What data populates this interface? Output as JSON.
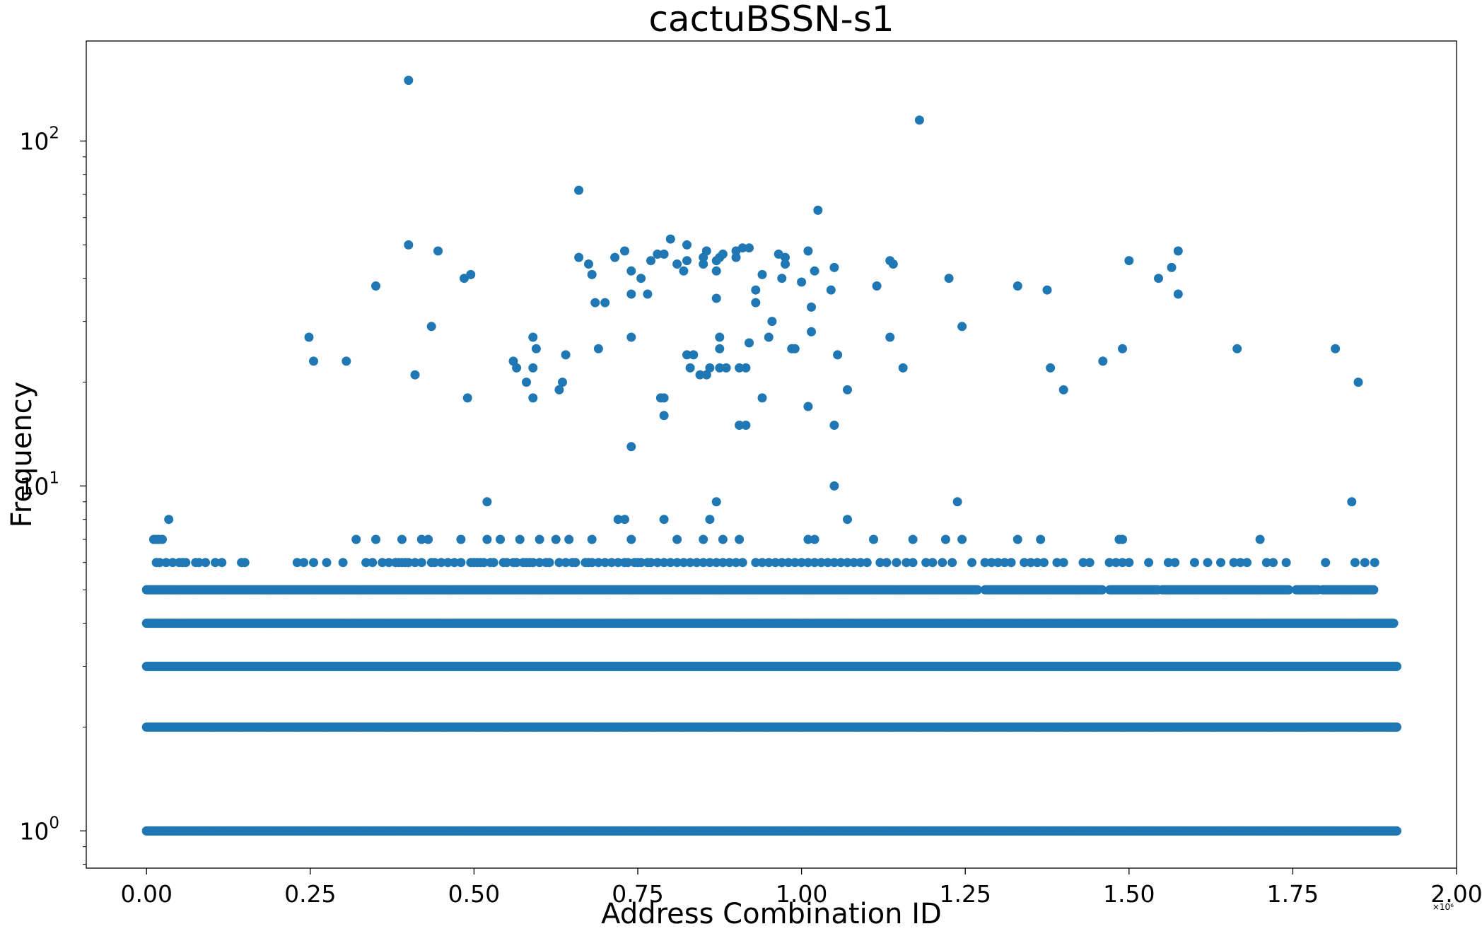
{
  "chart_data": {
    "type": "scatter",
    "title": "cactuBSSN-s1",
    "xlabel": "Address Combination ID",
    "ylabel": "Frequency",
    "x_offset_label": "×10⁶",
    "x_scale_factor": 1000000,
    "y_scale": "log",
    "xlim": [
      -0.092,
      2.0
    ],
    "ylim": [
      0.78,
      195
    ],
    "x_ticks": [
      0.0,
      0.25,
      0.5,
      0.75,
      1.0,
      1.25,
      1.5,
      1.75,
      2.0
    ],
    "x_tick_labels": [
      "0.00",
      "0.25",
      "0.50",
      "0.75",
      "1.00",
      "1.25",
      "1.50",
      "1.75",
      "2.00"
    ],
    "y_ticks": [
      1,
      10,
      100
    ],
    "y_tick_labels": [
      "10",
      "10",
      "10"
    ],
    "y_tick_exponents": [
      "0",
      "1",
      "2"
    ],
    "grid": false,
    "marker_color": "#1f77b4",
    "dense_rows": [
      {
        "y": 1,
        "x_range": [
          0.0,
          1.91
        ]
      },
      {
        "y": 2,
        "x_range": [
          0.0,
          1.91
        ]
      },
      {
        "y": 3,
        "x_range": [
          0.0,
          1.91
        ]
      },
      {
        "y": 4,
        "x_range": [
          0.0,
          1.905
        ]
      },
      {
        "y": 5,
        "x_range": [
          0.0,
          1.875
        ]
      }
    ],
    "row_gaps": [
      {
        "y": 5,
        "x_range": [
          1.27,
          1.28
        ]
      },
      {
        "y": 5,
        "x_range": [
          1.46,
          1.47
        ]
      },
      {
        "y": 5,
        "x_range": [
          1.545,
          1.55
        ]
      },
      {
        "y": 5,
        "x_range": [
          1.745,
          1.755
        ]
      },
      {
        "y": 5,
        "x_range": [
          1.79,
          1.795
        ]
      }
    ],
    "points": [
      [
        0.011,
        7
      ],
      [
        0.015,
        7
      ],
      [
        0.019,
        7
      ],
      [
        0.024,
        7
      ],
      [
        0.034,
        8
      ],
      [
        0.52,
        9
      ],
      [
        0.87,
        9
      ],
      [
        1.238,
        9
      ],
      [
        1.84,
        9
      ],
      [
        1.05,
        10
      ],
      [
        0.72,
        8
      ],
      [
        0.73,
        8
      ],
      [
        0.79,
        8
      ],
      [
        0.86,
        8
      ],
      [
        1.07,
        8
      ],
      [
        0.32,
        7
      ],
      [
        0.35,
        7
      ],
      [
        0.39,
        7
      ],
      [
        0.42,
        7
      ],
      [
        0.43,
        7
      ],
      [
        0.48,
        7
      ],
      [
        0.52,
        7
      ],
      [
        0.54,
        7
      ],
      [
        0.57,
        7
      ],
      [
        0.6,
        7
      ],
      [
        0.625,
        7
      ],
      [
        0.645,
        7
      ],
      [
        0.68,
        7
      ],
      [
        0.74,
        7
      ],
      [
        0.81,
        7
      ],
      [
        0.85,
        7
      ],
      [
        0.88,
        7
      ],
      [
        0.905,
        7
      ],
      [
        1.01,
        7
      ],
      [
        1.02,
        7
      ],
      [
        1.11,
        7
      ],
      [
        1.17,
        7
      ],
      [
        1.22,
        7
      ],
      [
        1.245,
        7
      ],
      [
        1.33,
        7
      ],
      [
        1.365,
        7
      ],
      [
        1.485,
        7
      ],
      [
        1.49,
        7
      ],
      [
        1.7,
        7
      ],
      [
        0.74,
        13
      ],
      [
        0.79,
        16
      ],
      [
        0.785,
        18
      ],
      [
        0.79,
        18
      ],
      [
        0.94,
        18
      ],
      [
        0.905,
        15
      ],
      [
        0.915,
        15
      ],
      [
        1.05,
        15
      ],
      [
        1.01,
        17
      ],
      [
        0.59,
        18
      ],
      [
        0.49,
        18
      ],
      [
        1.07,
        19
      ],
      [
        1.4,
        19
      ],
      [
        1.85,
        20
      ],
      [
        0.58,
        20
      ],
      [
        0.635,
        20
      ],
      [
        0.63,
        19
      ],
      [
        0.41,
        21
      ],
      [
        0.845,
        21
      ],
      [
        0.855,
        21
      ],
      [
        0.86,
        22
      ],
      [
        0.875,
        22
      ],
      [
        0.885,
        22
      ],
      [
        0.905,
        22
      ],
      [
        0.915,
        22
      ],
      [
        0.83,
        22
      ],
      [
        0.565,
        22
      ],
      [
        0.59,
        22
      ],
      [
        1.155,
        22
      ],
      [
        1.38,
        22
      ],
      [
        0.255,
        23
      ],
      [
        0.305,
        23
      ],
      [
        0.56,
        23
      ],
      [
        1.46,
        23
      ],
      [
        0.64,
        24
      ],
      [
        0.825,
        24
      ],
      [
        0.835,
        24
      ],
      [
        1.055,
        24
      ],
      [
        0.595,
        25
      ],
      [
        0.69,
        25
      ],
      [
        0.875,
        25
      ],
      [
        0.985,
        25
      ],
      [
        0.99,
        25
      ],
      [
        1.49,
        25
      ],
      [
        1.665,
        25
      ],
      [
        1.815,
        25
      ],
      [
        0.92,
        26
      ],
      [
        0.248,
        27
      ],
      [
        0.59,
        27
      ],
      [
        0.74,
        27
      ],
      [
        0.875,
        27
      ],
      [
        0.95,
        27
      ],
      [
        1.135,
        27
      ],
      [
        0.435,
        29
      ],
      [
        1.245,
        29
      ],
      [
        1.015,
        28
      ],
      [
        0.955,
        30
      ],
      [
        0.685,
        34
      ],
      [
        0.7,
        34
      ],
      [
        0.93,
        34
      ],
      [
        0.87,
        35
      ],
      [
        1.015,
        33
      ],
      [
        0.74,
        36
      ],
      [
        0.765,
        36
      ],
      [
        0.93,
        37
      ],
      [
        1.045,
        37
      ],
      [
        1.375,
        37
      ],
      [
        1.575,
        36
      ],
      [
        0.35,
        38
      ],
      [
        1.115,
        38
      ],
      [
        1.33,
        38
      ],
      [
        0.755,
        40
      ],
      [
        0.485,
        40
      ],
      [
        0.495,
        41
      ],
      [
        0.68,
        41
      ],
      [
        0.94,
        41
      ],
      [
        0.97,
        40
      ],
      [
        1.225,
        40
      ],
      [
        1.545,
        40
      ],
      [
        1.0,
        39
      ],
      [
        0.74,
        42
      ],
      [
        0.82,
        42
      ],
      [
        0.87,
        42
      ],
      [
        1.02,
        42
      ],
      [
        1.05,
        43
      ],
      [
        1.565,
        43
      ],
      [
        0.675,
        44
      ],
      [
        0.77,
        45
      ],
      [
        0.81,
        44
      ],
      [
        0.85,
        44
      ],
      [
        0.87,
        45
      ],
      [
        0.975,
        44
      ],
      [
        1.14,
        44
      ],
      [
        1.135,
        45
      ],
      [
        1.5,
        45
      ],
      [
        0.66,
        46
      ],
      [
        0.715,
        46
      ],
      [
        0.78,
        47
      ],
      [
        0.79,
        47
      ],
      [
        0.825,
        45
      ],
      [
        0.85,
        46
      ],
      [
        0.875,
        46
      ],
      [
        0.88,
        47
      ],
      [
        0.9,
        46
      ],
      [
        0.965,
        47
      ],
      [
        0.975,
        46
      ],
      [
        0.73,
        48
      ],
      [
        0.445,
        48
      ],
      [
        0.855,
        48
      ],
      [
        0.9,
        48
      ],
      [
        0.91,
        49
      ],
      [
        0.92,
        49
      ],
      [
        1.01,
        48
      ],
      [
        1.575,
        48
      ],
      [
        0.4,
        50
      ],
      [
        0.825,
        50
      ],
      [
        0.8,
        52
      ],
      [
        1.025,
        63
      ],
      [
        0.66,
        72
      ],
      [
        1.18,
        115
      ],
      [
        0.4,
        150
      ]
    ]
  }
}
